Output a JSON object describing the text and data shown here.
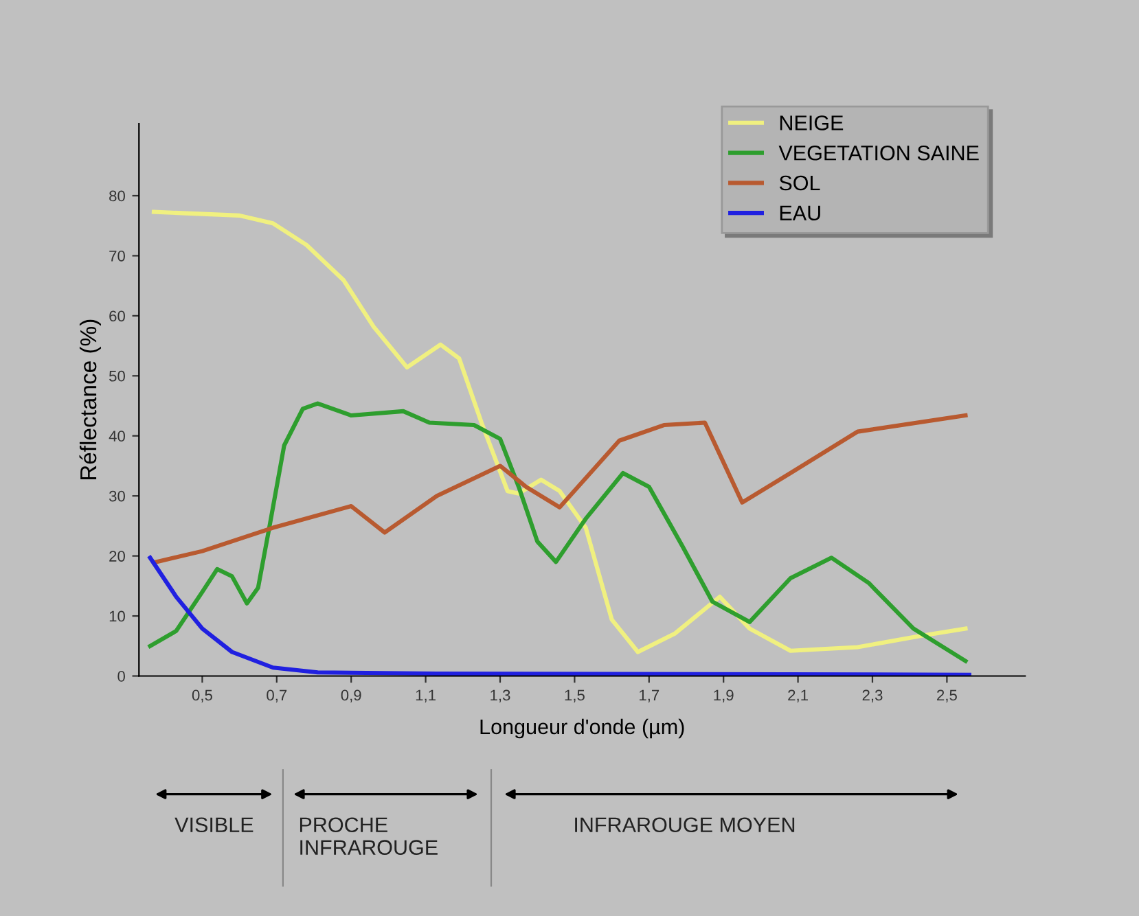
{
  "chart_data": {
    "type": "line",
    "xlabel": "Longueur d'onde (µm)",
    "ylabel": "Réflectance (%)",
    "xlim": [
      0.33,
      2.71
    ],
    "ylim": [
      0,
      92
    ],
    "xticks": [
      {
        "value": 0.5,
        "label": "0,5"
      },
      {
        "value": 0.7,
        "label": "0,7"
      },
      {
        "value": 0.9,
        "label": "0,9"
      },
      {
        "value": 1.1,
        "label": "1,1"
      },
      {
        "value": 1.3,
        "label": "1,3"
      },
      {
        "value": 1.5,
        "label": "1,5"
      },
      {
        "value": 1.7,
        "label": "1,7"
      },
      {
        "value": 1.9,
        "label": "1,9"
      },
      {
        "value": 2.1,
        "label": "2,1"
      },
      {
        "value": 2.3,
        "label": "2,3"
      },
      {
        "value": 2.5,
        "label": "2,5"
      }
    ],
    "yticks": [
      0,
      10,
      20,
      30,
      40,
      50,
      60,
      70,
      80
    ],
    "grid": false,
    "legend": "top right",
    "marker": "none",
    "line_style": "solid",
    "series": [
      {
        "name": "NEIGE",
        "color": "#f0f080",
        "x": [
          0.37,
          0.6,
          0.69,
          0.78,
          0.88,
          0.96,
          1.05,
          1.14,
          1.19,
          1.25,
          1.32,
          1.35,
          1.41,
          1.46,
          1.53,
          1.6,
          1.67,
          1.77,
          1.89,
          1.97,
          2.08,
          2.26,
          2.43,
          2.55
        ],
        "values": [
          77.3,
          76.7,
          75.4,
          71.8,
          65.9,
          58.2,
          51.4,
          55.2,
          52.9,
          42.2,
          30.8,
          30.4,
          32.7,
          30.8,
          24.7,
          9.4,
          4.0,
          7.1,
          13.2,
          7.9,
          4.2,
          4.8,
          6.7,
          7.9
        ]
      },
      {
        "name": "VEGETATION SAINE",
        "color": "#2e9e2e",
        "x": [
          0.36,
          0.43,
          0.5,
          0.54,
          0.58,
          0.62,
          0.65,
          0.68,
          0.72,
          0.77,
          0.81,
          0.9,
          1.04,
          1.11,
          1.23,
          1.3,
          1.35,
          1.4,
          1.45,
          1.53,
          1.63,
          1.7,
          1.79,
          1.87,
          1.97,
          2.08,
          2.19,
          2.29,
          2.41,
          2.55
        ],
        "values": [
          5.0,
          7.5,
          14.0,
          17.8,
          16.6,
          12.1,
          14.7,
          24.7,
          38.4,
          44.5,
          45.4,
          43.4,
          44.1,
          42.2,
          41.8,
          39.5,
          31.5,
          22.4,
          19.0,
          26.2,
          33.8,
          31.5,
          21.6,
          12.4,
          9.0,
          16.3,
          19.7,
          15.5,
          7.9,
          2.5
        ]
      },
      {
        "name": "SOL",
        "color": "#b85a30",
        "x": [
          0.37,
          0.5,
          0.69,
          0.9,
          0.99,
          1.13,
          1.3,
          1.37,
          1.46,
          1.62,
          1.74,
          1.85,
          1.89,
          1.95,
          2.08,
          2.26,
          2.55
        ],
        "values": [
          18.9,
          20.8,
          24.7,
          28.3,
          23.9,
          30.0,
          35.0,
          31.5,
          28.1,
          39.2,
          41.8,
          42.2,
          36.9,
          28.9,
          33.8,
          40.7,
          43.4
        ]
      },
      {
        "name": "EAU",
        "color": "#2020e0",
        "x": [
          0.36,
          0.43,
          0.5,
          0.58,
          0.69,
          0.81,
          1.13,
          2.56
        ],
        "values": [
          19.7,
          13.2,
          7.9,
          4.0,
          1.4,
          0.6,
          0.4,
          0.2
        ]
      }
    ],
    "annotations": [
      "VISIBLE",
      "PROCHE\nINFRAROUGE",
      "INFRAROUGE MOYEN"
    ]
  }
}
